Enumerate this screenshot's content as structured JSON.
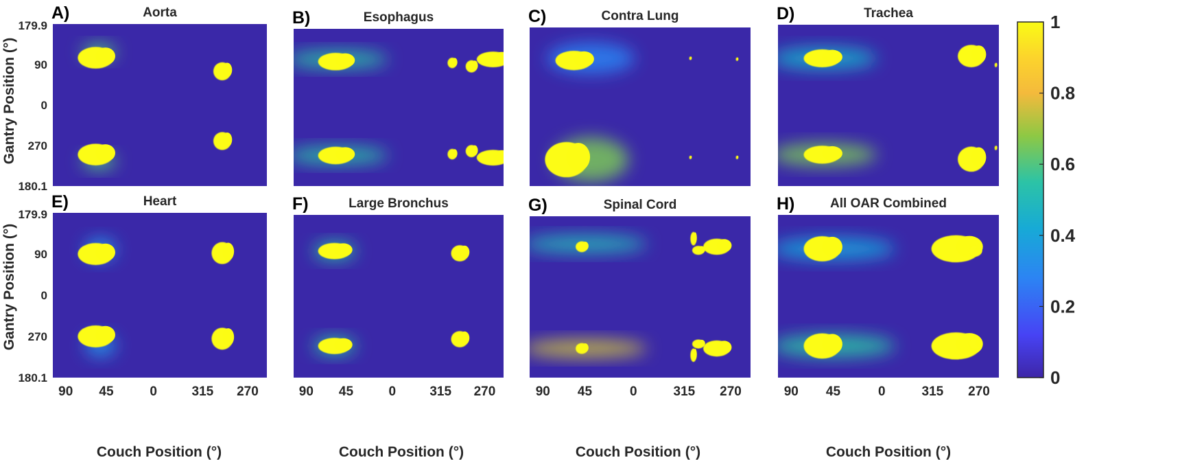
{
  "colors": {
    "background": "#3a28a8",
    "saturated": "#fcfc14",
    "colormap": [
      "#3e26a8",
      "#4743f4",
      "#2c84f3",
      "#17aad6",
      "#2cc3a6",
      "#8ec844",
      "#f4ba3c",
      "#fcd42c",
      "#f9fb15"
    ]
  },
  "chart_data": {
    "type": "heatmap",
    "x_axis": {
      "label": "Couch Position (°)",
      "ticks": [
        "90",
        "45",
        "0",
        "315",
        "270"
      ]
    },
    "y_axis": {
      "label": "Gantry Position (°)",
      "ticks": [
        "179.9",
        "90",
        "0",
        "270",
        "180.1"
      ]
    },
    "colorbar": {
      "min": 0,
      "max": 1,
      "ticks": [
        "0",
        "0.2",
        "0.4",
        "0.6",
        "0.8",
        "1"
      ]
    },
    "panels": [
      {
        "letter": "A)",
        "title": "Aorta",
        "blobs": [
          {
            "x": 72,
            "y": 75,
            "w": 30,
            "h": 24,
            "v": 1
          },
          {
            "x": 72,
            "y": 290,
            "w": 30,
            "h": 24,
            "v": 1
          },
          {
            "x": 285,
            "y": 105,
            "w": 15,
            "h": 20,
            "v": 1
          },
          {
            "x": 285,
            "y": 260,
            "w": 15,
            "h": 20,
            "v": 1
          }
        ],
        "glows": [
          {
            "x": 60,
            "y": 62,
            "w": 35,
            "h": 18,
            "v": 0.55
          },
          {
            "x": 60,
            "y": 305,
            "w": 35,
            "h": 18,
            "v": 0.55
          }
        ]
      },
      {
        "letter": "B)",
        "title": "Esophagus",
        "blobs": [
          {
            "x": 72,
            "y": 75,
            "w": 30,
            "h": 20,
            "v": 1
          },
          {
            "x": 72,
            "y": 290,
            "w": 30,
            "h": 20,
            "v": 1
          },
          {
            "x": 342,
            "y": 70,
            "w": 28,
            "h": 18,
            "v": 1
          },
          {
            "x": 342,
            "y": 295,
            "w": 28,
            "h": 18,
            "v": 1
          },
          {
            "x": 305,
            "y": 86,
            "w": 10,
            "h": 14,
            "v": 1
          },
          {
            "x": 305,
            "y": 280,
            "w": 10,
            "h": 14,
            "v": 1
          },
          {
            "x": 272,
            "y": 78,
            "w": 8,
            "h": 12,
            "v": 1
          },
          {
            "x": 272,
            "y": 287,
            "w": 8,
            "h": 12,
            "v": 1
          }
        ],
        "glows": [
          {
            "x": 0,
            "y": 70,
            "w": 150,
            "h": 20,
            "v": 0.5
          },
          {
            "x": 0,
            "y": 290,
            "w": 150,
            "h": 20,
            "v": 0.5
          }
        ]
      },
      {
        "letter": "C)",
        "title": "Contra Lung",
        "blobs": [
          {
            "x": 72,
            "y": 75,
            "w": 30,
            "h": 22,
            "v": 1
          },
          {
            "x": 60,
            "y": 300,
            "w": 35,
            "h": 40,
            "v": 1
          },
          {
            "x": 338,
            "y": 72,
            "w": 2,
            "h": 4,
            "v": 1
          },
          {
            "x": 338,
            "y": 295,
            "w": 2,
            "h": 4,
            "v": 1
          },
          {
            "x": 262,
            "y": 70,
            "w": 2,
            "h": 4,
            "v": 1
          },
          {
            "x": 262,
            "y": 295,
            "w": 2,
            "h": 4,
            "v": 1
          }
        ],
        "glows": [
          {
            "x": 40,
            "y": 70,
            "w": 120,
            "h": 35,
            "v": 0.25
          },
          {
            "x": 50,
            "y": 300,
            "w": 100,
            "h": 50,
            "v": 0.6
          }
        ]
      },
      {
        "letter": "D)",
        "title": "Trachea",
        "blobs": [
          {
            "x": 72,
            "y": 75,
            "w": 30,
            "h": 20,
            "v": 1
          },
          {
            "x": 72,
            "y": 290,
            "w": 30,
            "h": 20,
            "v": 1
          },
          {
            "x": 315,
            "y": 70,
            "w": 22,
            "h": 25,
            "v": 1
          },
          {
            "x": 315,
            "y": 300,
            "w": 22,
            "h": 28,
            "v": 1
          },
          {
            "x": 355,
            "y": 90,
            "w": 2,
            "h": 5,
            "v": 1
          },
          {
            "x": 355,
            "y": 275,
            "w": 2,
            "h": 5,
            "v": 1
          }
        ],
        "glows": [
          {
            "x": 0,
            "y": 75,
            "w": 150,
            "h": 25,
            "v": 0.4
          },
          {
            "x": 0,
            "y": 290,
            "w": 150,
            "h": 25,
            "v": 0.6
          }
        ]
      },
      {
        "letter": "E)",
        "title": "Heart",
        "blobs": [
          {
            "x": 72,
            "y": 90,
            "w": 30,
            "h": 24,
            "v": 1
          },
          {
            "x": 72,
            "y": 270,
            "w": 30,
            "h": 24,
            "v": 1
          },
          {
            "x": 285,
            "y": 88,
            "w": 18,
            "h": 24,
            "v": 1
          },
          {
            "x": 285,
            "y": 275,
            "w": 18,
            "h": 24,
            "v": 1
          }
        ],
        "glows": [
          {
            "x": 65,
            "y": 80,
            "w": 30,
            "h": 25,
            "v": 0.3
          },
          {
            "x": 65,
            "y": 290,
            "w": 30,
            "h": 25,
            "v": 0.3
          }
        ]
      },
      {
        "letter": "F)",
        "title": "Large Bronchus",
        "blobs": [
          {
            "x": 70,
            "y": 80,
            "w": 28,
            "h": 18,
            "v": 1
          },
          {
            "x": 70,
            "y": 290,
            "w": 28,
            "h": 18,
            "v": 1
          },
          {
            "x": 285,
            "y": 85,
            "w": 15,
            "h": 18,
            "v": 1
          },
          {
            "x": 285,
            "y": 275,
            "w": 15,
            "h": 18,
            "v": 1
          }
        ],
        "glows": [
          {
            "x": 45,
            "y": 80,
            "w": 50,
            "h": 20,
            "v": 0.5
          },
          {
            "x": 45,
            "y": 290,
            "w": 50,
            "h": 20,
            "v": 0.5
          }
        ]
      },
      {
        "letter": "G)",
        "title": "Spinal Cord",
        "blobs": [
          {
            "x": 85,
            "y": 68,
            "w": 10,
            "h": 12,
            "v": 1
          },
          {
            "x": 85,
            "y": 295,
            "w": 10,
            "h": 12,
            "v": 1
          },
          {
            "x": 305,
            "y": 68,
            "w": 22,
            "h": 18,
            "v": 1
          },
          {
            "x": 305,
            "y": 295,
            "w": 22,
            "h": 18,
            "v": 1
          },
          {
            "x": 275,
            "y": 76,
            "w": 10,
            "h": 10,
            "v": 1
          },
          {
            "x": 275,
            "y": 285,
            "w": 10,
            "h": 10,
            "v": 1
          },
          {
            "x": 267,
            "y": 50,
            "w": 5,
            "h": 15,
            "v": 1
          },
          {
            "x": 267,
            "y": 310,
            "w": 5,
            "h": 15,
            "v": 1
          }
        ],
        "glows": [
          {
            "x": 0,
            "y": 62,
            "w": 180,
            "h": 20,
            "v": 0.45
          },
          {
            "x": 0,
            "y": 295,
            "w": 180,
            "h": 20,
            "v": 0.7
          }
        ]
      },
      {
        "letter": "H)",
        "title": "All OAR Combined",
        "blobs": [
          {
            "x": 72,
            "y": 75,
            "w": 30,
            "h": 28,
            "v": 1
          },
          {
            "x": 72,
            "y": 290,
            "w": 30,
            "h": 28,
            "v": 1
          },
          {
            "x": 290,
            "y": 75,
            "w": 40,
            "h": 30,
            "v": 1
          },
          {
            "x": 290,
            "y": 290,
            "w": 40,
            "h": 30,
            "v": 1
          },
          {
            "x": 322,
            "y": 80,
            "w": 10,
            "h": 12,
            "v": 1
          },
          {
            "x": 322,
            "y": 285,
            "w": 10,
            "h": 12,
            "v": 1
          }
        ],
        "glows": [
          {
            "x": 0,
            "y": 75,
            "w": 180,
            "h": 25,
            "v": 0.35
          },
          {
            "x": 0,
            "y": 290,
            "w": 180,
            "h": 25,
            "v": 0.5
          }
        ]
      }
    ]
  }
}
